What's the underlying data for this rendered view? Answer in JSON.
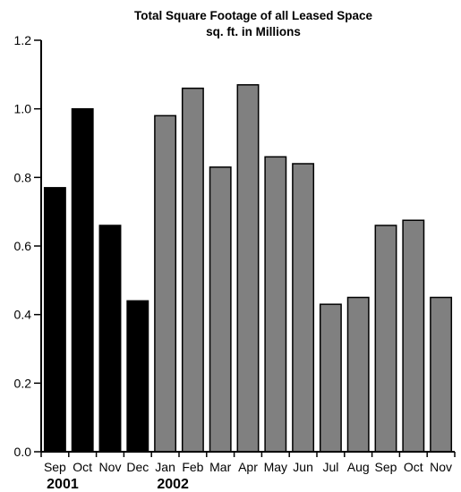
{
  "chart_data": {
    "type": "bar",
    "title": "Total Square Footage of all Leased Space",
    "subtitle": "sq. ft. in Millions",
    "xlabel": "",
    "ylabel": "",
    "ylim": [
      0,
      1.2
    ],
    "yticks": [
      "0.0",
      "0.2",
      "0.4",
      "0.6",
      "0.8",
      "1.0",
      "1.2"
    ],
    "categories": [
      "Sep",
      "Oct",
      "Nov",
      "Dec",
      "Jan",
      "Feb",
      "Mar",
      "Apr",
      "May",
      "Jun",
      "Jul",
      "Aug",
      "Sep",
      "Oct",
      "Nov"
    ],
    "values": [
      0.77,
      1.0,
      0.66,
      0.44,
      0.98,
      1.06,
      0.83,
      1.07,
      0.86,
      0.84,
      0.43,
      0.45,
      0.66,
      0.675,
      0.45
    ],
    "groups": [
      {
        "year": "2001",
        "start": 0,
        "count": 4,
        "color": "#000000"
      },
      {
        "year": "2002",
        "start": 4,
        "count": 11,
        "color": "#808080"
      }
    ],
    "grid": false,
    "legend": "none"
  }
}
